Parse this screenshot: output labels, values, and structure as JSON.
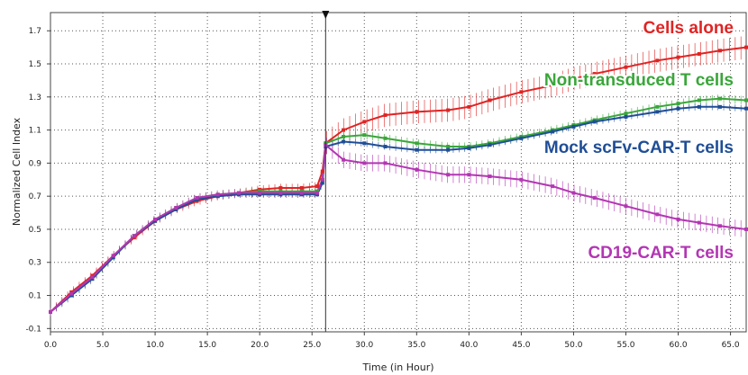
{
  "chart_data": {
    "type": "line",
    "xlabel": "Time (in Hour)",
    "ylabel": "Normalized Cell Index",
    "xlim": [
      0,
      66.5
    ],
    "ylim": [
      -0.12,
      1.81
    ],
    "x_ticks": [
      0,
      5,
      10,
      15,
      20,
      25,
      30,
      35,
      40,
      45,
      50,
      55,
      60,
      65
    ],
    "x_tick_labels": [
      "0.0",
      "5.0",
      "10.0",
      "15.0",
      "20.0",
      "25.0",
      "30.0",
      "35.0",
      "40.0",
      "45.0",
      "50.0",
      "55.0",
      "60.0",
      "65.0"
    ],
    "y_ticks": [
      -0.1,
      0.1,
      0.3,
      0.5,
      0.7,
      0.9,
      1.1,
      1.3,
      1.5,
      1.7
    ],
    "y_tick_labels": [
      "-0.1",
      "0.1",
      "0.3",
      "0.5",
      "0.7",
      "0.9",
      "1.1",
      "1.3",
      "1.5",
      "1.7"
    ],
    "grid": true,
    "marker_line_x": 26.3,
    "series": [
      {
        "name": "Cells alone",
        "color": "#e02424",
        "x": [
          0,
          2,
          4,
          6,
          8,
          10,
          12,
          14,
          16,
          18,
          20,
          22,
          24,
          25.5,
          26,
          26.3,
          28,
          30,
          32,
          35,
          38,
          40,
          42,
          45,
          48,
          50,
          52,
          55,
          58,
          60,
          62,
          64,
          66.5
        ],
        "y": [
          0.0,
          0.12,
          0.22,
          0.34,
          0.45,
          0.55,
          0.62,
          0.67,
          0.7,
          0.72,
          0.74,
          0.75,
          0.75,
          0.76,
          0.85,
          1.02,
          1.1,
          1.15,
          1.19,
          1.21,
          1.22,
          1.24,
          1.28,
          1.33,
          1.37,
          1.41,
          1.44,
          1.48,
          1.52,
          1.54,
          1.56,
          1.58,
          1.6
        ],
        "error": 0.025,
        "error_after": 0.07
      },
      {
        "name": "Non-transduced T cells",
        "color": "#3aa63a",
        "x": [
          0,
          2,
          4,
          6,
          8,
          10,
          12,
          14,
          16,
          18,
          20,
          22,
          24,
          25.5,
          26,
          26.3,
          28,
          30,
          32,
          35,
          38,
          40,
          42,
          45,
          48,
          50,
          52,
          55,
          58,
          60,
          62,
          64,
          66.5
        ],
        "y": [
          0.0,
          0.1,
          0.2,
          0.33,
          0.46,
          0.56,
          0.63,
          0.69,
          0.71,
          0.72,
          0.73,
          0.73,
          0.73,
          0.73,
          0.8,
          1.02,
          1.06,
          1.07,
          1.05,
          1.02,
          1.0,
          1.0,
          1.02,
          1.06,
          1.1,
          1.13,
          1.16,
          1.2,
          1.24,
          1.26,
          1.28,
          1.29,
          1.28
        ],
        "error": 0.025,
        "error_after": 0.025
      },
      {
        "name": "Mock scFv-CAR-T cells",
        "color": "#1f4e96",
        "x": [
          0,
          2,
          4,
          6,
          8,
          10,
          12,
          14,
          16,
          18,
          20,
          22,
          24,
          25.5,
          26,
          26.3,
          28,
          30,
          32,
          35,
          38,
          40,
          42,
          45,
          48,
          50,
          52,
          55,
          58,
          60,
          62,
          64,
          66.5
        ],
        "y": [
          0.0,
          0.1,
          0.2,
          0.33,
          0.46,
          0.55,
          0.62,
          0.68,
          0.7,
          0.71,
          0.71,
          0.71,
          0.71,
          0.71,
          0.78,
          1.0,
          1.03,
          1.02,
          1.0,
          0.98,
          0.98,
          0.99,
          1.01,
          1.05,
          1.09,
          1.12,
          1.15,
          1.18,
          1.21,
          1.23,
          1.24,
          1.24,
          1.23
        ],
        "error": 0.02,
        "error_after": 0.02
      },
      {
        "name": "CD19-CAR-T cells",
        "color": "#b336b3",
        "x": [
          0,
          2,
          4,
          6,
          8,
          10,
          12,
          14,
          16,
          18,
          20,
          22,
          24,
          25.5,
          26,
          26.3,
          28,
          30,
          32,
          35,
          38,
          40,
          42,
          45,
          48,
          50,
          52,
          55,
          58,
          60,
          62,
          64,
          66.5
        ],
        "y": [
          0.0,
          0.11,
          0.21,
          0.34,
          0.46,
          0.56,
          0.63,
          0.69,
          0.71,
          0.72,
          0.72,
          0.72,
          0.72,
          0.72,
          0.8,
          1.01,
          0.92,
          0.9,
          0.9,
          0.86,
          0.83,
          0.83,
          0.82,
          0.8,
          0.76,
          0.72,
          0.69,
          0.64,
          0.59,
          0.56,
          0.54,
          0.52,
          0.5
        ],
        "error": 0.025,
        "error_after": 0.05
      }
    ],
    "annotations": [
      {
        "text": "Cells alone",
        "color": "#e02424",
        "series": "Cells alone"
      },
      {
        "text": "Non-transduced T cells",
        "color": "#3aa63a",
        "series": "Non-transduced T cells"
      },
      {
        "text": "Mock scFv-CAR-T cells",
        "color": "#1f4e96",
        "series": "Mock scFv-CAR-T cells"
      },
      {
        "text": "CD19-CAR-T cells",
        "color": "#b336b3",
        "series": "CD19-CAR-T cells"
      }
    ]
  }
}
